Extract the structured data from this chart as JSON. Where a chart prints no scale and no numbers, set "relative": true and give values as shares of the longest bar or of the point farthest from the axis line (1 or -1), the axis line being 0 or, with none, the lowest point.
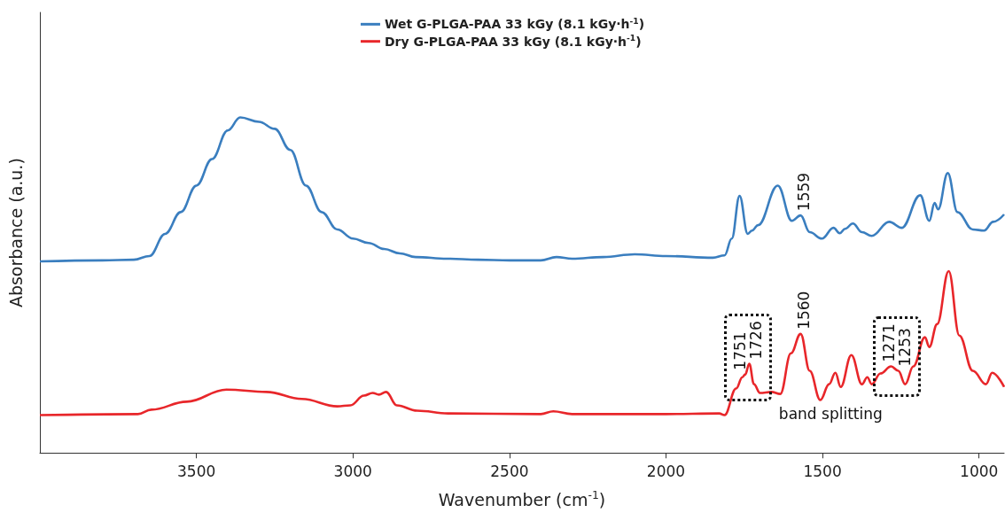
{
  "chart_data": {
    "type": "line",
    "xlabel": "Wavenumber (cm$^{-1}$)",
    "ylabel": "Absorbance (a.u.)",
    "relative": true,
    "xlim": [
      4000,
      920
    ],
    "xticks": [
      3500,
      3000,
      2500,
      2000,
      1500,
      1000
    ],
    "grid": false,
    "legend": "top",
    "marker": "none",
    "line_style": "solid",
    "series": [
      {
        "name": "Wet G-PLGA-PAA 33 kGy (8.1 kGy·h$^{-1}$)",
        "color": "#3a7ebf",
        "x": [
          4000,
          3800,
          3700,
          3650,
          3600,
          3550,
          3500,
          3450,
          3400,
          3360,
          3300,
          3250,
          3200,
          3150,
          3100,
          3050,
          3000,
          2950,
          2900,
          2850,
          2800,
          2700,
          2600,
          2500,
          2400,
          2350,
          2300,
          2200,
          2100,
          2000,
          1850,
          1813,
          1790,
          1765,
          1739,
          1725,
          1706,
          1643,
          1598,
          1570,
          1541,
          1502,
          1465,
          1445,
          1428,
          1403,
          1374,
          1343,
          1287,
          1247,
          1188,
          1159,
          1142,
          1131,
          1100,
          1069,
          1020,
          984,
          955,
          920
        ],
        "values": [
          0.571,
          0.574,
          0.576,
          0.587,
          0.653,
          0.718,
          0.797,
          0.876,
          0.961,
          1.0,
          0.987,
          0.966,
          0.903,
          0.797,
          0.718,
          0.666,
          0.639,
          0.626,
          0.608,
          0.595,
          0.584,
          0.579,
          0.576,
          0.574,
          0.574,
          0.584,
          0.579,
          0.584,
          0.592,
          0.587,
          0.582,
          0.589,
          0.639,
          0.766,
          0.653,
          0.663,
          0.679,
          0.797,
          0.692,
          0.708,
          0.658,
          0.639,
          0.671,
          0.655,
          0.668,
          0.684,
          0.658,
          0.647,
          0.689,
          0.671,
          0.768,
          0.692,
          0.745,
          0.726,
          0.834,
          0.718,
          0.666,
          0.663,
          0.689,
          0.711
        ]
      },
      {
        "name": "Dry G-PLGA-PAA 33 kGy (8.1 kGy·h$^{-1}$)",
        "color": "#e8262a",
        "x": [
          4000,
          3687,
          3644,
          3531,
          3404,
          3276,
          3163,
          3050,
          3008,
          2965,
          2937,
          2917,
          2894,
          2860,
          2795,
          2696,
          2400,
          2360,
          2300,
          2000,
          1830,
          1813,
          1776,
          1756,
          1747,
          1734,
          1719,
          1700,
          1663,
          1635,
          1601,
          1570,
          1541,
          1507,
          1479,
          1459,
          1442,
          1408,
          1374,
          1357,
          1343,
          1315,
          1281,
          1258,
          1236,
          1210,
          1173,
          1159,
          1134,
          1097,
          1063,
          1020,
          978,
          958,
          920
        ],
        "values": [
          0.113,
          0.116,
          0.129,
          0.153,
          0.189,
          0.182,
          0.161,
          0.139,
          0.142,
          0.171,
          0.179,
          0.174,
          0.182,
          0.142,
          0.126,
          0.118,
          0.116,
          0.124,
          0.116,
          0.116,
          0.118,
          0.113,
          0.192,
          0.226,
          0.234,
          0.266,
          0.205,
          0.179,
          0.182,
          0.176,
          0.297,
          0.355,
          0.245,
          0.158,
          0.205,
          0.239,
          0.197,
          0.292,
          0.205,
          0.226,
          0.205,
          0.237,
          0.258,
          0.245,
          0.205,
          0.258,
          0.345,
          0.316,
          0.384,
          0.542,
          0.35,
          0.245,
          0.205,
          0.239,
          0.197
        ]
      }
    ],
    "annotations": [
      {
        "text": "1559",
        "x": 1559,
        "y": 0.708
      },
      {
        "text": "1751",
        "x": 1751,
        "y": 0.234
      },
      {
        "text": "1726",
        "x": 1726,
        "y": 0.266
      },
      {
        "text": "1560",
        "x": 1560,
        "y": 0.355
      },
      {
        "text": "1271",
        "x": 1271,
        "y": 0.258
      },
      {
        "text": "1253",
        "x": 1253,
        "y": 0.245
      },
      "band splitting"
    ]
  }
}
